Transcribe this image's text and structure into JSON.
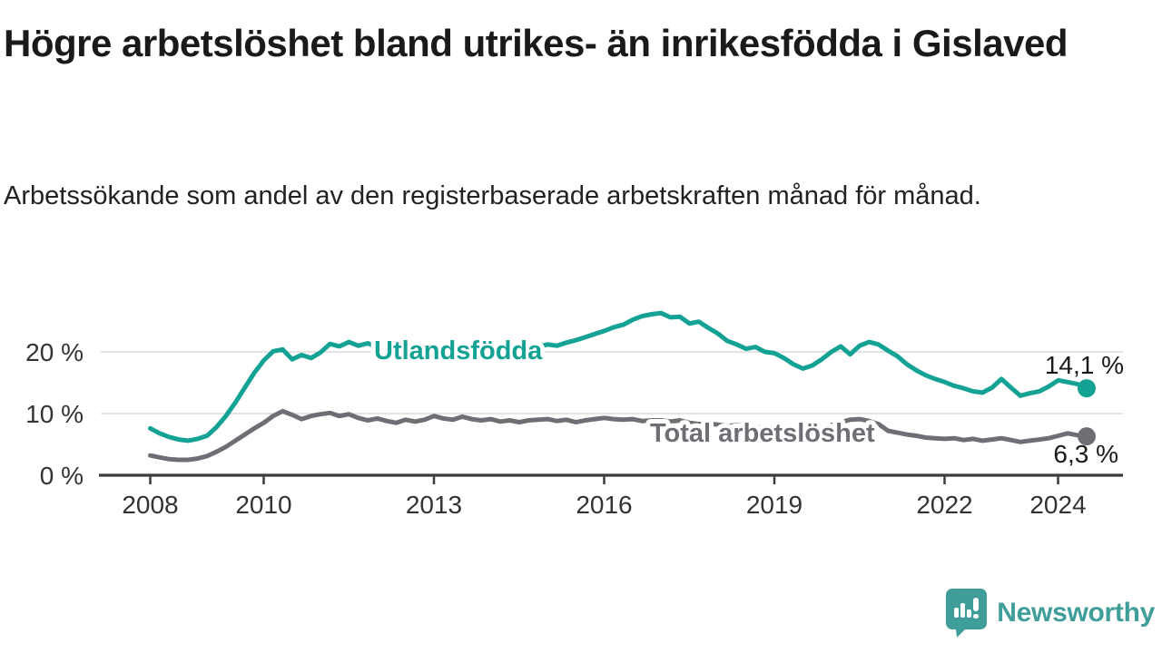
{
  "header": {
    "title": "Högre arbetslöshet bland utrikes- än inrikesfödda i Gislaved",
    "subtitle": "Arbetssökande som andel av den registerbaserade arbetskraften månad för månad."
  },
  "chart": {
    "y_ticks": [
      {
        "label": "0 %",
        "value": 0
      },
      {
        "label": "10 %",
        "value": 10
      },
      {
        "label": "20 %",
        "value": 20
      }
    ],
    "x_ticks": [
      {
        "label": "2008",
        "year": 2008
      },
      {
        "label": "2010",
        "year": 2010
      },
      {
        "label": "2013",
        "year": 2013
      },
      {
        "label": "2016",
        "year": 2016
      },
      {
        "label": "2019",
        "year": 2019
      },
      {
        "label": "2022",
        "year": 2022
      },
      {
        "label": "2024",
        "year": 2024
      }
    ],
    "colors": {
      "utlandsfodda": "#13a294",
      "total": "#706e75",
      "gridline": "#dcdcdc",
      "axis": "#3c3c3c",
      "tick_text": "#333333",
      "value_text": "#1a1a1a"
    }
  },
  "chart_data": {
    "type": "line",
    "title": "Högre arbetslöshet bland utrikes- än inrikesfödda i Gislaved",
    "subtitle": "Arbetssökande som andel av den registerbaserade arbetskraften månad för månad.",
    "x_unit": "decimal_year",
    "x_start": 2008.0,
    "x_step": 0.1667,
    "xlim": [
      2007.1,
      2025.15
    ],
    "ylim": [
      0,
      28.5
    ],
    "yticks": [
      0,
      10,
      20
    ],
    "xticks": [
      2008,
      2010,
      2013,
      2016,
      2019,
      2022,
      2024
    ],
    "grid": "horizontal-only",
    "legend_position": "inline-on-line",
    "series": [
      {
        "name": "Utlandsfödda",
        "color": "#13a294",
        "end_label": "14,1 %",
        "end_value": 14.1,
        "inline_label_pos": {
          "x": 412,
          "y": 66
        },
        "end_label_pos": {
          "x": 1238,
          "y": 82,
          "anchor": "end"
        },
        "values": [
          7.6,
          6.8,
          6.2,
          5.8,
          5.6,
          5.9,
          6.4,
          7.8,
          9.6,
          11.8,
          14.2,
          16.6,
          18.6,
          20.1,
          20.4,
          18.8,
          19.5,
          19.0,
          19.9,
          21.3,
          20.9,
          21.6,
          21.0,
          21.4,
          20.8,
          20.4,
          20.9,
          20.6,
          21.0,
          20.5,
          20.9,
          20.5,
          20.8,
          20.4,
          20.8,
          20.5,
          20.9,
          20.6,
          21.0,
          20.7,
          21.1,
          20.8,
          21.2,
          21.0,
          21.5,
          21.9,
          22.4,
          22.9,
          23.4,
          24.0,
          24.4,
          25.2,
          25.8,
          26.1,
          26.3,
          25.6,
          25.7,
          24.6,
          24.9,
          23.9,
          23.0,
          21.8,
          21.2,
          20.5,
          20.8,
          20.0,
          19.8,
          19.0,
          18.0,
          17.3,
          17.8,
          18.8,
          20.0,
          20.9,
          19.6,
          21.0,
          21.6,
          21.2,
          20.2,
          19.3,
          18.0,
          17.0,
          16.2,
          15.6,
          15.1,
          14.5,
          14.1,
          13.6,
          13.4,
          14.2,
          15.6,
          14.2,
          12.9,
          13.3,
          13.6,
          14.4,
          15.4,
          15.1,
          14.8,
          14.1
        ]
      },
      {
        "name": "Total arbetslöshet",
        "color": "#706e75",
        "end_label": "6,3 %",
        "end_value": 6.3,
        "inline_label_pos": {
          "x": 716,
          "y": 157
        },
        "end_label_pos": {
          "x": 1232,
          "y": 180,
          "anchor": "end"
        },
        "values": [
          3.2,
          2.9,
          2.6,
          2.5,
          2.5,
          2.7,
          3.1,
          3.8,
          4.6,
          5.6,
          6.6,
          7.6,
          8.5,
          9.6,
          10.4,
          9.8,
          9.1,
          9.6,
          9.9,
          10.1,
          9.6,
          9.9,
          9.3,
          8.9,
          9.2,
          8.8,
          8.5,
          9.0,
          8.7,
          9.0,
          9.6,
          9.2,
          9.0,
          9.5,
          9.1,
          8.9,
          9.1,
          8.7,
          8.9,
          8.6,
          8.9,
          9.0,
          9.1,
          8.8,
          9.0,
          8.6,
          8.9,
          9.1,
          9.3,
          9.1,
          9.0,
          9.1,
          8.8,
          8.9,
          8.9,
          8.7,
          8.9,
          8.5,
          8.3,
          8.4,
          8.2,
          8.0,
          8.1,
          7.9,
          7.7,
          7.8,
          7.6,
          7.4,
          7.2,
          7.3,
          7.4,
          7.7,
          8.1,
          8.6,
          9.0,
          9.1,
          8.8,
          8.3,
          7.2,
          6.9,
          6.6,
          6.4,
          6.1,
          6.0,
          5.9,
          6.0,
          5.7,
          5.9,
          5.6,
          5.8,
          6.0,
          5.7,
          5.4,
          5.6,
          5.8,
          6.0,
          6.4,
          6.8,
          6.5,
          6.3
        ]
      }
    ]
  },
  "footer": {
    "brand": "Newsworthy",
    "logo_icon": "bar-chart-speech-bubble",
    "brand_color": "#3f9d9a"
  }
}
